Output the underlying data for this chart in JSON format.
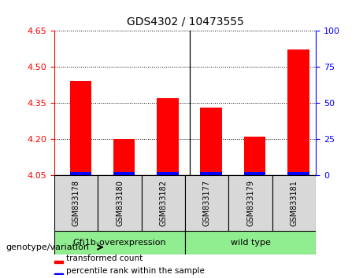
{
  "title": "GDS4302 / 10473555",
  "samples": [
    "GSM833178",
    "GSM833180",
    "GSM833182",
    "GSM833177",
    "GSM833179",
    "GSM833181"
  ],
  "red_values": [
    4.44,
    4.2,
    4.37,
    4.33,
    4.21,
    4.57
  ],
  "bar_bottom": 4.05,
  "blue_height": 0.013,
  "ylim_left": [
    4.05,
    4.65
  ],
  "ylim_right": [
    0,
    100
  ],
  "yticks_left": [
    4.05,
    4.2,
    4.35,
    4.5,
    4.65
  ],
  "yticks_right": [
    0,
    25,
    50,
    75,
    100
  ],
  "group1_label": "Gfi1b-overexpression",
  "group2_label": "wild type",
  "group_color": "#90EE90",
  "genotype_label": "genotype/variation",
  "legend_items": [
    {
      "color": "red",
      "label": "transformed count"
    },
    {
      "color": "blue",
      "label": "percentile rank within the sample"
    }
  ],
  "bar_width": 0.5,
  "bg_color": "#d8d8d8",
  "plot_bg": "white",
  "left_axis_color": "red",
  "right_axis_color": "blue",
  "separator_x": 2.5,
  "xlim": [
    -0.6,
    5.4
  ]
}
